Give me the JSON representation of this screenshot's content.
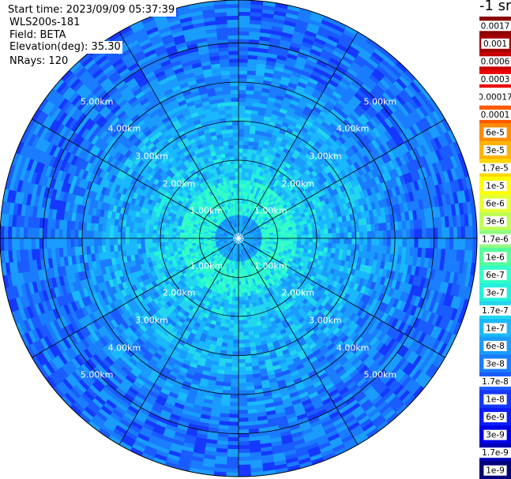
{
  "info": {
    "start_time": "Start time: 2023/09/09 05:37:39",
    "station": "WLS200s-181",
    "field": "Field: BETA",
    "elevation": "Elevation(deg): 35.30",
    "nrays": "NRays: 120"
  },
  "colorbar": {
    "unit": "-1 sr",
    "bins": [
      {
        "label": "0.0017",
        "color": "#8b0000"
      },
      {
        "label": "0.001",
        "color": "#a40000"
      },
      {
        "label": "0.0006",
        "color": "#c80000"
      },
      {
        "label": "0.0003",
        "color": "#ee0000"
      },
      {
        "label": "0.00017",
        "color": "#ffffff"
      },
      {
        "label": "0.0001",
        "color": "#ff5a00"
      },
      {
        "label": "6e-5",
        "color": "#ff8c00"
      },
      {
        "label": "3e-5",
        "color": "#ffb400"
      },
      {
        "label": "1.7e-5",
        "color": "#ffd700"
      },
      {
        "label": "1e-5",
        "color": "#ffff00"
      },
      {
        "label": "6e-6",
        "color": "#e6ff33"
      },
      {
        "label": "3e-6",
        "color": "#bfff55"
      },
      {
        "label": "1.7e-6",
        "color": "#90ff80"
      },
      {
        "label": "1e-6",
        "color": "#55ff99"
      },
      {
        "label": "6e-7",
        "color": "#33ffc8"
      },
      {
        "label": "3e-7",
        "color": "#22f2dc"
      },
      {
        "label": "1.7e-7",
        "color": "#22d6ee"
      },
      {
        "label": "1e-7",
        "color": "#19b8ff"
      },
      {
        "label": "6e-8",
        "color": "#1a9cff"
      },
      {
        "label": "3e-8",
        "color": "#1a7cff"
      },
      {
        "label": "1.7e-8",
        "color": "#1a5cff"
      },
      {
        "label": "1e-8",
        "color": "#1538ff"
      },
      {
        "label": "6e-9",
        "color": "#0c1cff"
      },
      {
        "label": "3e-9",
        "color": "#0000e6"
      },
      {
        "label": "1.7e-9",
        "color": "#0000b4"
      },
      {
        "label": "1e-9",
        "color": "#00007a"
      }
    ]
  },
  "chart_data": {
    "type": "heatmap",
    "projection": "polar PPI (plan position indicator)",
    "variable": "BETA",
    "range_rings_km": [
      1,
      2,
      3,
      4,
      5
    ],
    "range_ring_labels": [
      "1.00km",
      "2.00km",
      "3.00km",
      "4.00km",
      "5.00km"
    ],
    "max_range_km": 6.1,
    "spokes_deg": [
      0,
      30,
      60,
      90,
      120,
      150,
      180,
      210,
      240,
      270,
      300,
      330
    ],
    "n_rays": 120,
    "elevation_deg": 35.3,
    "approx_field": [
      {
        "range_km": [
          0,
          0.6
        ],
        "typical_class": "6e-8"
      },
      {
        "range_km": [
          0.6,
          1.5
        ],
        "typical_class": "6e-7"
      },
      {
        "range_km": [
          1.5,
          3.5
        ],
        "typical_class": "1.7e-7"
      },
      {
        "range_km": [
          3.5,
          6.1
        ],
        "typical_class": "6e-8 to 1e-8"
      }
    ],
    "grid": true
  }
}
